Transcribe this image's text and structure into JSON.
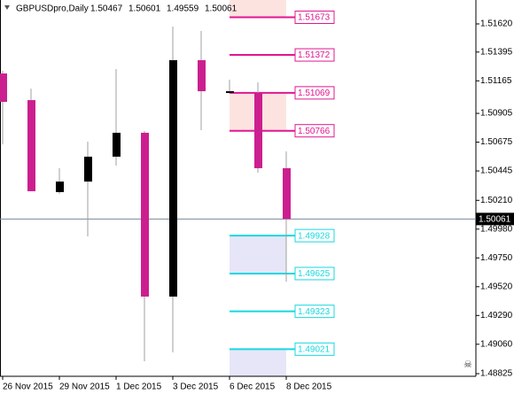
{
  "chart_data": {
    "type": "candlestick",
    "title": "GBPUSDpro,Daily",
    "categories": [
      "26 Nov 2015",
      null,
      "29 Nov 2015",
      null,
      "1 Dec 2015",
      null,
      "3 Dec 2015",
      null,
      "6 Dec 2015",
      null,
      "8 Dec 2015"
    ],
    "open": [
      1.51224,
      1.51011,
      1.50276,
      1.5036,
      1.50559,
      1.5075,
      1.49441,
      1.5133,
      1.51068,
      1.51068,
      1.50467
    ],
    "high": [
      1.51245,
      1.51103,
      1.50467,
      1.50679,
      1.51259,
      1.50764,
      1.51599,
      1.51563,
      1.51174,
      1.51153,
      1.50601
    ],
    "low": [
      1.50658,
      1.50283,
      1.50261,
      1.49922,
      1.50488,
      1.48924,
      1.48995,
      1.50771,
      1.51061,
      1.50431,
      1.49559
    ],
    "close": [
      1.50997,
      1.50283,
      1.5036,
      1.50559,
      1.5075,
      1.49441,
      1.5133,
      1.51082,
      1.51082,
      1.50467,
      1.50061
    ],
    "up_color": "#000000",
    "down_color": "#cc1f8f",
    "wick_color": "#a0a0a0",
    "levels": [
      {
        "value": 1.51673,
        "color": "#e0178f"
      },
      {
        "value": 1.51372,
        "color": "#e0178f"
      },
      {
        "value": 1.51069,
        "color": "#e0178f"
      },
      {
        "value": 1.50766,
        "color": "#e0178f"
      },
      {
        "value": 1.49928,
        "color": "#17d8e0"
      },
      {
        "value": 1.49625,
        "color": "#17d8e0"
      },
      {
        "value": 1.49323,
        "color": "#17d8e0"
      },
      {
        "value": 1.49021,
        "color": "#17d8e0"
      }
    ],
    "zones": [
      {
        "from": 1.51811,
        "to": 1.51673,
        "color": "#fde3e0"
      },
      {
        "from": 1.51069,
        "to": 1.50766,
        "color": "#fde3e0"
      },
      {
        "from": 1.49928,
        "to": 1.49625,
        "color": "#e6e6f8"
      },
      {
        "from": 1.49021,
        "to": 1.48804,
        "color": "#e6e6f8"
      }
    ],
    "ylim": [
      1.48804,
      1.51811
    ],
    "yticks": [
      {
        "value": 1.5162,
        "label": "1.51620"
      },
      1.51395,
      1.51165,
      1.50905,
      1.50675,
      1.50445,
      {
        "value": 1.5021,
        "label": "1.50210"
      },
      {
        "value": 1.4998,
        "label": "1.49980"
      },
      {
        "value": 1.4975,
        "label": "1.49750"
      },
      {
        "value": 1.4952,
        "label": "1.49520"
      },
      {
        "value": 1.4929,
        "label": "1.49290"
      },
      {
        "value": 1.4906,
        "label": "1.49060"
      },
      1.48825
    ]
  }
}
